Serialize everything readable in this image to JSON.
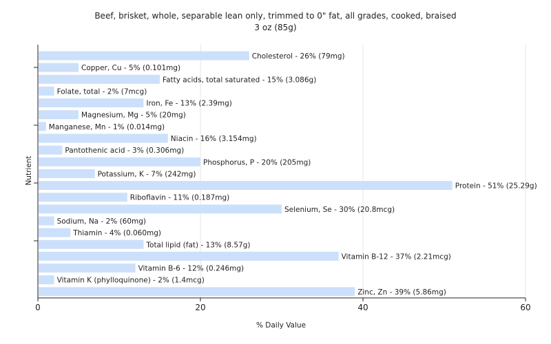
{
  "chart_data": {
    "type": "bar",
    "orientation": "horizontal",
    "title": "Beef, brisket, whole, separable lean only, trimmed to 0\" fat, all grades, cooked, braised",
    "subtitle": "3 oz (85g)",
    "xlabel": "% Daily Value",
    "ylabel": "Nutrient",
    "xlim": [
      0,
      60
    ],
    "xticks": [
      "0",
      "20",
      "40",
      "60"
    ],
    "grid": true,
    "bar_color": "#cce0fb",
    "categories": [
      "Cholesterol",
      "Copper, Cu",
      "Fatty acids, total saturated",
      "Folate, total",
      "Iron, Fe",
      "Magnesium, Mg",
      "Manganese, Mn",
      "Niacin",
      "Pantothenic acid",
      "Phosphorus, P",
      "Potassium, K",
      "Protein",
      "Riboflavin",
      "Selenium, Se",
      "Sodium, Na",
      "Thiamin",
      "Total lipid (fat)",
      "Vitamin B-12",
      "Vitamin B-6",
      "Vitamin K (phylloquinone)",
      "Zinc, Zn"
    ],
    "values": [
      26,
      5,
      15,
      2,
      13,
      5,
      1,
      16,
      3,
      20,
      7,
      51,
      11,
      30,
      2,
      4,
      13,
      37,
      12,
      2,
      39
    ],
    "labels": [
      "Cholesterol - 26% (79mg)",
      "Copper, Cu - 5% (0.101mg)",
      "Fatty acids, total saturated - 15% (3.086g)",
      "Folate, total - 2% (7mcg)",
      "Iron, Fe - 13% (2.39mg)",
      "Magnesium, Mg - 5% (20mg)",
      "Manganese, Mn - 1% (0.014mg)",
      "Niacin - 16% (3.154mg)",
      "Pantothenic acid - 3% (0.306mg)",
      "Phosphorus, P - 20% (205mg)",
      "Potassium, K - 7% (242mg)",
      "Protein - 51% (25.29g)",
      "Riboflavin - 11% (0.187mg)",
      "Selenium, Se - 30% (20.8mcg)",
      "Sodium, Na - 2% (60mg)",
      "Thiamin - 4% (0.060mg)",
      "Total lipid (fat) - 13% (8.57g)",
      "Vitamin B-12 - 37% (2.21mcg)",
      "Vitamin B-6 - 12% (0.246mg)",
      "Vitamin K (phylloquinone) - 2% (1.4mcg)",
      "Zinc, Zn - 39% (5.86mg)"
    ]
  }
}
